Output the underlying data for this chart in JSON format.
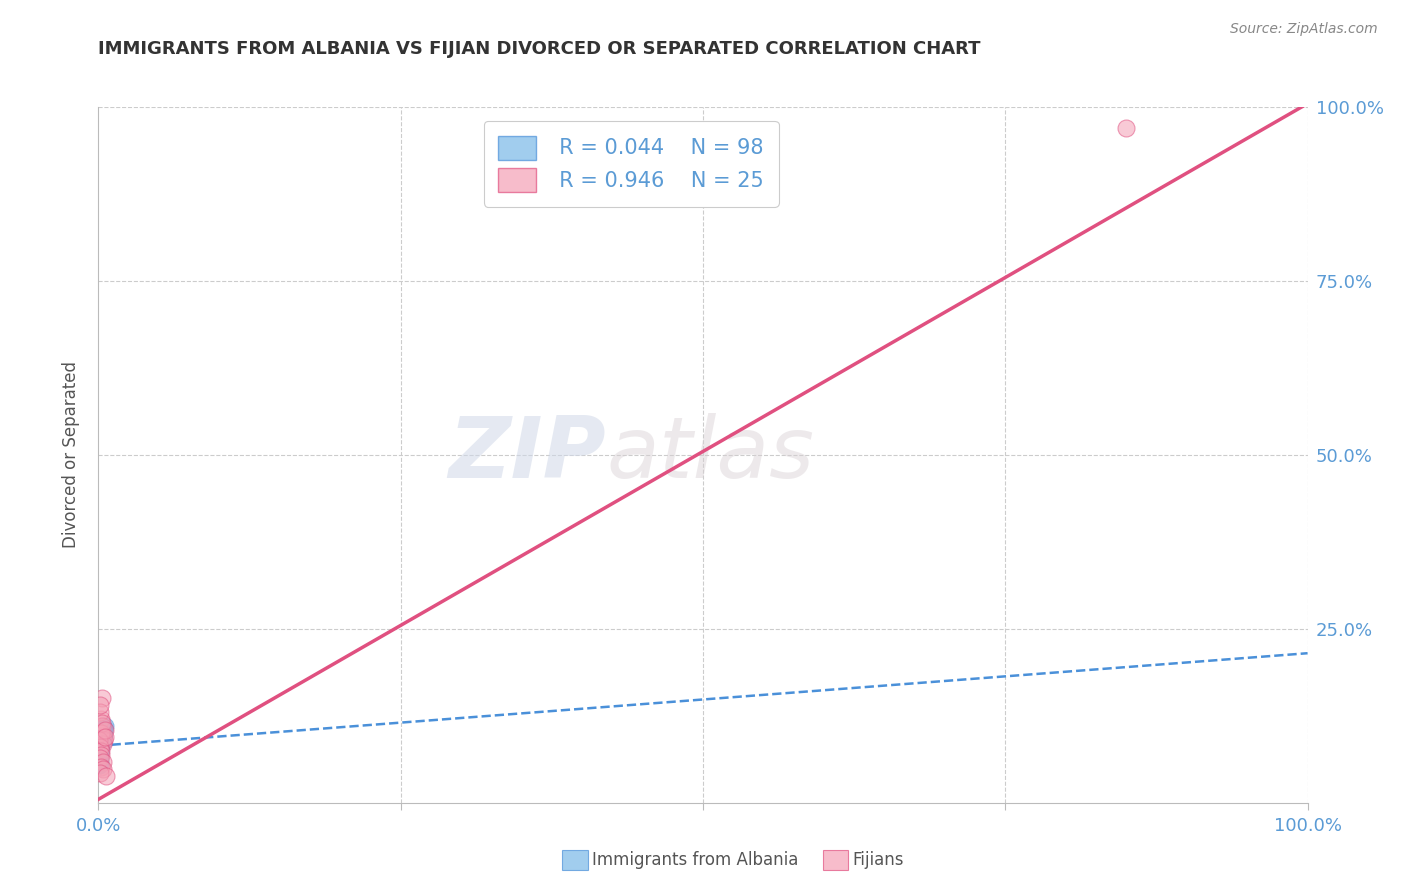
{
  "title": "IMMIGRANTS FROM ALBANIA VS FIJIAN DIVORCED OR SEPARATED CORRELATION CHART",
  "source_text": "Source: ZipAtlas.com",
  "ylabel": "Divorced or Separated",
  "xlim": [
    0.0,
    1.0
  ],
  "ylim": [
    0.0,
    1.0
  ],
  "x_ticks": [
    0.0,
    0.25,
    0.5,
    0.75,
    1.0
  ],
  "x_tick_labels": [
    "0.0%",
    "",
    "",
    "",
    "100.0%"
  ],
  "y_ticks": [
    0.0,
    0.25,
    0.5,
    0.75,
    1.0
  ],
  "y_tick_labels": [
    "",
    "25.0%",
    "50.0%",
    "75.0%",
    "100.0%"
  ],
  "blue_color": "#7ab8e8",
  "pink_color": "#f4a0b5",
  "blue_line_color": "#4a90d9",
  "pink_line_color": "#e05080",
  "legend_r_blue": "R = 0.044",
  "legend_n_blue": "N = 98",
  "legend_r_pink": "R = 0.946",
  "legend_n_pink": "N = 25",
  "watermark_zip": "ZIP",
  "watermark_atlas": "atlas",
  "blue_scatter_x": [
    0.0008,
    0.0015,
    0.0025,
    0.001,
    0.0035,
    0.0018,
    0.0012,
    0.0028,
    0.0042,
    0.002,
    0.0009,
    0.0022,
    0.0011,
    0.003,
    0.0019,
    0.0013,
    0.0038,
    0.0017,
    0.0032,
    0.001,
    0.0021,
    0.0007,
    0.0033,
    0.0016,
    0.0008,
    0.004,
    0.0015,
    0.0006,
    0.0029,
    0.0018,
    0.0005,
    0.0048,
    0.0014,
    0.0027,
    0.0009,
    0.002,
    0.0036,
    0.0011,
    0.0031,
    0.0017,
    0.0006,
    0.0023,
    0.0026,
    0.0008,
    0.0039,
    0.0016,
    0.0007,
    0.0034,
    0.0019,
    0.0005,
    0.0055,
    0.0013,
    0.0004,
    0.0028,
    0.0015,
    0.0006,
    0.0041,
    0.0012,
    0.0024,
    0.0009,
    0.002,
    0.0007,
    0.003,
    0.0014,
    0.0005,
    0.0043,
    0.0011,
    0.0008,
    0.0035,
    0.0016,
    0.0004,
    0.0021,
    0.0025,
    0.001,
    0.0038,
    0.0013,
    0.0006,
    0.0032,
    0.0018,
    0.0007,
    0.005,
    0.0015,
    0.0005,
    0.0029,
    0.0012,
    0.0008,
    0.0044,
    0.001,
    0.0027,
    0.0009,
    0.0019,
    0.0006,
    0.0031,
    0.0014,
    0.0007,
    0.0036,
    0.0011,
    0.0004
  ],
  "blue_scatter_y": [
    0.09,
    0.095,
    0.085,
    0.092,
    0.088,
    0.096,
    0.083,
    0.091,
    0.094,
    0.087,
    0.08,
    0.093,
    0.086,
    0.097,
    0.089,
    0.082,
    0.099,
    0.084,
    0.093,
    0.081,
    0.091,
    0.079,
    0.094,
    0.088,
    0.082,
    0.098,
    0.085,
    0.077,
    0.095,
    0.09,
    0.076,
    0.106,
    0.083,
    0.096,
    0.078,
    0.087,
    0.097,
    0.075,
    0.093,
    0.086,
    0.074,
    0.09,
    0.092,
    0.073,
    0.1,
    0.082,
    0.072,
    0.094,
    0.088,
    0.07,
    0.11,
    0.083,
    0.069,
    0.095,
    0.087,
    0.068,
    0.101,
    0.081,
    0.092,
    0.067,
    0.089,
    0.066,
    0.096,
    0.085,
    0.065,
    0.103,
    0.08,
    0.064,
    0.097,
    0.084,
    0.063,
    0.088,
    0.094,
    0.062,
    0.102,
    0.079,
    0.061,
    0.098,
    0.083,
    0.06,
    0.108,
    0.078,
    0.059,
    0.099,
    0.082,
    0.058,
    0.105,
    0.077,
    0.093,
    0.057,
    0.086,
    0.056,
    0.1,
    0.081,
    0.055,
    0.104,
    0.076,
    0.054
  ],
  "pink_scatter_x": [
    0.0008,
    0.0018,
    0.003,
    0.001,
    0.004,
    0.002,
    0.0028,
    0.0012,
    0.0048,
    0.0022,
    0.0038,
    0.0032,
    0.0008,
    0.0015,
    0.0058,
    0.0025,
    0.0018,
    0.001,
    0.0042,
    0.002,
    0.0035,
    0.0015,
    0.0052,
    0.0065,
    0.85
  ],
  "pink_scatter_y": [
    0.1,
    0.12,
    0.15,
    0.13,
    0.095,
    0.1,
    0.11,
    0.14,
    0.09,
    0.1,
    0.085,
    0.115,
    0.09,
    0.08,
    0.105,
    0.075,
    0.068,
    0.065,
    0.058,
    0.052,
    0.048,
    0.043,
    0.095,
    0.038,
    0.97
  ],
  "blue_trend_x": [
    0.0,
    1.0
  ],
  "blue_trend_y": [
    0.082,
    0.215
  ],
  "pink_trend_x": [
    0.0,
    1.0
  ],
  "pink_trend_y": [
    0.005,
    1.005
  ],
  "background_color": "#ffffff",
  "grid_color": "#cccccc",
  "title_color": "#333333",
  "tick_label_color": "#5b9bd5"
}
